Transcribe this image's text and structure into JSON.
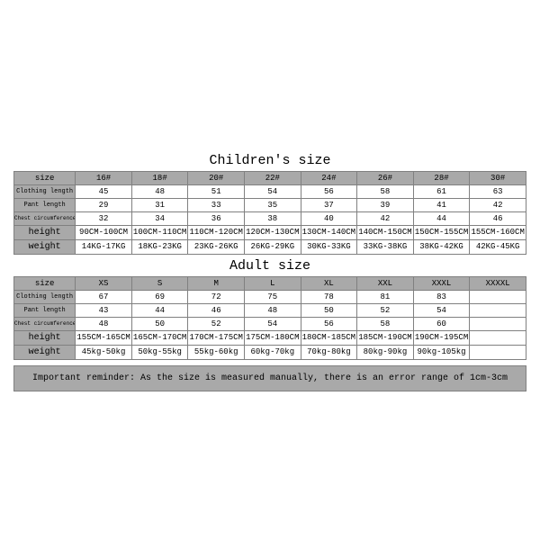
{
  "children": {
    "title": "Children's size",
    "columns": [
      "size",
      "16#",
      "18#",
      "20#",
      "22#",
      "24#",
      "26#",
      "28#",
      "30#"
    ],
    "rows": [
      {
        "label": "Clothing length",
        "label_fontsize": 7,
        "cells": [
          "45",
          "48",
          "51",
          "54",
          "56",
          "58",
          "61",
          "63"
        ]
      },
      {
        "label": "Pant length",
        "label_fontsize": 7,
        "cells": [
          "29",
          "31",
          "33",
          "35",
          "37",
          "39",
          "41",
          "42"
        ]
      },
      {
        "label": "Chest circumference 1/2",
        "label_fontsize": 6,
        "cells": [
          "32",
          "34",
          "36",
          "38",
          "40",
          "42",
          "44",
          "46"
        ]
      },
      {
        "label": "height",
        "label_fontsize": 10,
        "cells": [
          "90CM-100CM",
          "100CM-110CM",
          "110CM-120CM",
          "120CM-130CM",
          "130CM-140CM",
          "140CM-150CM",
          "150CM-155CM",
          "155CM-160CM"
        ]
      },
      {
        "label": "weight",
        "label_fontsize": 10,
        "cells": [
          "14KG-17KG",
          "18KG-23KG",
          "23KG-26KG",
          "26KG-29KG",
          "30KG-33KG",
          "33KG-38KG",
          "38KG-42KG",
          "42KG-45KG"
        ]
      }
    ]
  },
  "adult": {
    "title": "Adult size",
    "columns": [
      "size",
      "XS",
      "S",
      "M",
      "L",
      "XL",
      "XXL",
      "XXXL",
      "XXXXL"
    ],
    "rows": [
      {
        "label": "Clothing length",
        "label_fontsize": 7,
        "cells": [
          "67",
          "69",
          "72",
          "75",
          "78",
          "81",
          "83",
          ""
        ]
      },
      {
        "label": "Pant length",
        "label_fontsize": 7,
        "cells": [
          "43",
          "44",
          "46",
          "48",
          "50",
          "52",
          "54",
          ""
        ]
      },
      {
        "label": "Chest circumference 1/2",
        "label_fontsize": 6,
        "cells": [
          "48",
          "50",
          "52",
          "54",
          "56",
          "58",
          "60",
          ""
        ]
      },
      {
        "label": "height",
        "label_fontsize": 10,
        "cells": [
          "155CM-165CM",
          "165CM-170CM",
          "170CM-175CM",
          "175CM-180CM",
          "180CM-185CM",
          "185CM-190CM",
          "190CM-195CM",
          ""
        ]
      },
      {
        "label": "weight",
        "label_fontsize": 10,
        "cells": [
          "45kg-50kg",
          "50kg-55kg",
          "55kg-60kg",
          "60kg-70kg",
          "70kg-80kg",
          "80kg-90kg",
          "90kg-105kg",
          ""
        ]
      }
    ]
  },
  "reminder": "Important reminder: As the size is measured manually, there is an error range of 1cm-3cm",
  "style": {
    "header_bg": "#a9a9a9",
    "border_color": "#808080",
    "page_bg": "#ffffff",
    "text_color": "#000000",
    "title_fontsize": 15,
    "cell_fontsize": 9,
    "font_family": "Courier New, monospace"
  }
}
